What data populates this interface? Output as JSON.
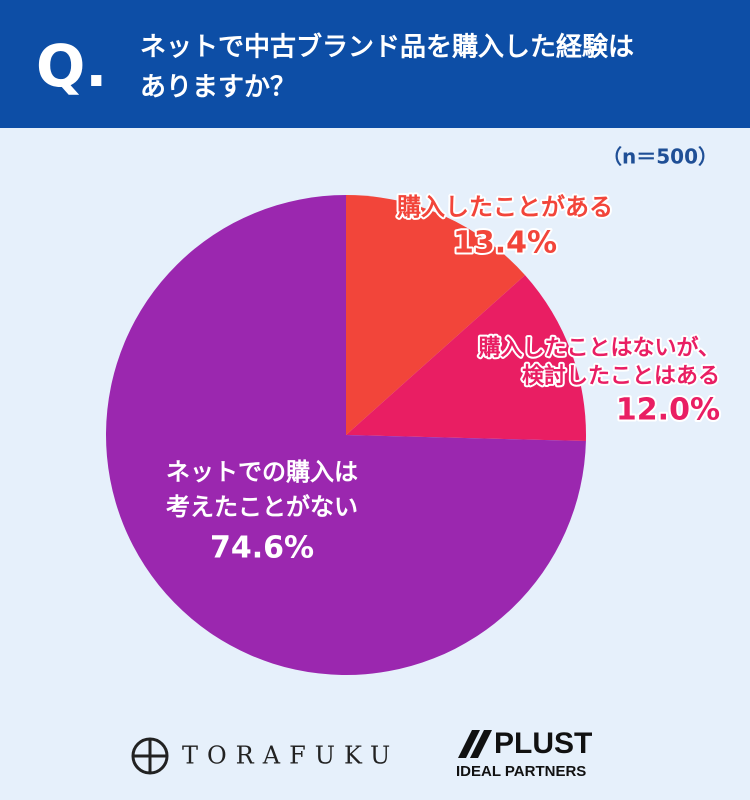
{
  "header": {
    "mark": "Q.",
    "title_lines": [
      "ネットで中古ブランド品を購入した経験は",
      "ありますか？"
    ]
  },
  "chart_data": {
    "type": "pie",
    "note": "（n＝500）",
    "categories": [
      [
        "購入したことがある"
      ],
      [
        "購入したことはないが、",
        "検討したことはある"
      ],
      [
        "ネットでの購入は",
        "考えたことがない"
      ]
    ],
    "values": [
      13.4,
      12.0,
      74.6
    ],
    "value_labels": [
      "13.4%",
      "12.0%",
      "74.6%"
    ],
    "colors": [
      "#f2453a",
      "#e91e63",
      "#9b27af"
    ]
  },
  "footer": {
    "logos": [
      "TORAFUKU",
      "PLUST",
      "IDEAL PARTNERS"
    ]
  }
}
